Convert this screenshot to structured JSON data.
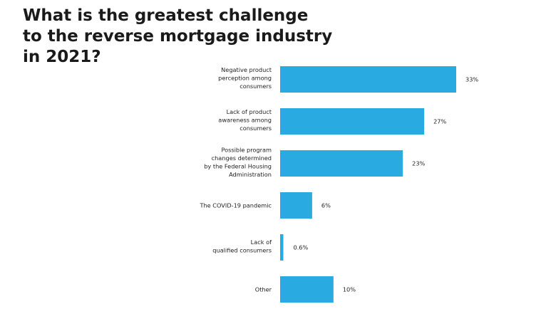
{
  "chart_data": {
    "type": "bar",
    "orientation": "horizontal",
    "title_lines": [
      "What is the greatest challenge",
      "to the reverse mortgage industry",
      "in 2021?"
    ],
    "categories": [
      [
        "Negative product",
        "perception among",
        "consumers"
      ],
      [
        "Lack of product",
        "awareness among",
        "consumers"
      ],
      [
        "Possible program",
        "changes determined",
        "by the Federal Housing",
        "Administration"
      ],
      [
        "The COVID-19 pandemic"
      ],
      [
        "Lack of",
        "qualified consumers"
      ],
      [
        "Other"
      ]
    ],
    "values": [
      33,
      27,
      23,
      6,
      0.6,
      10
    ],
    "value_labels": [
      "33%",
      "27%",
      "23%",
      "6%",
      "0.6%",
      "10%"
    ],
    "bar_color": "#29abe2",
    "xlim": [
      0,
      33
    ],
    "grid": false,
    "legend": "none"
  }
}
